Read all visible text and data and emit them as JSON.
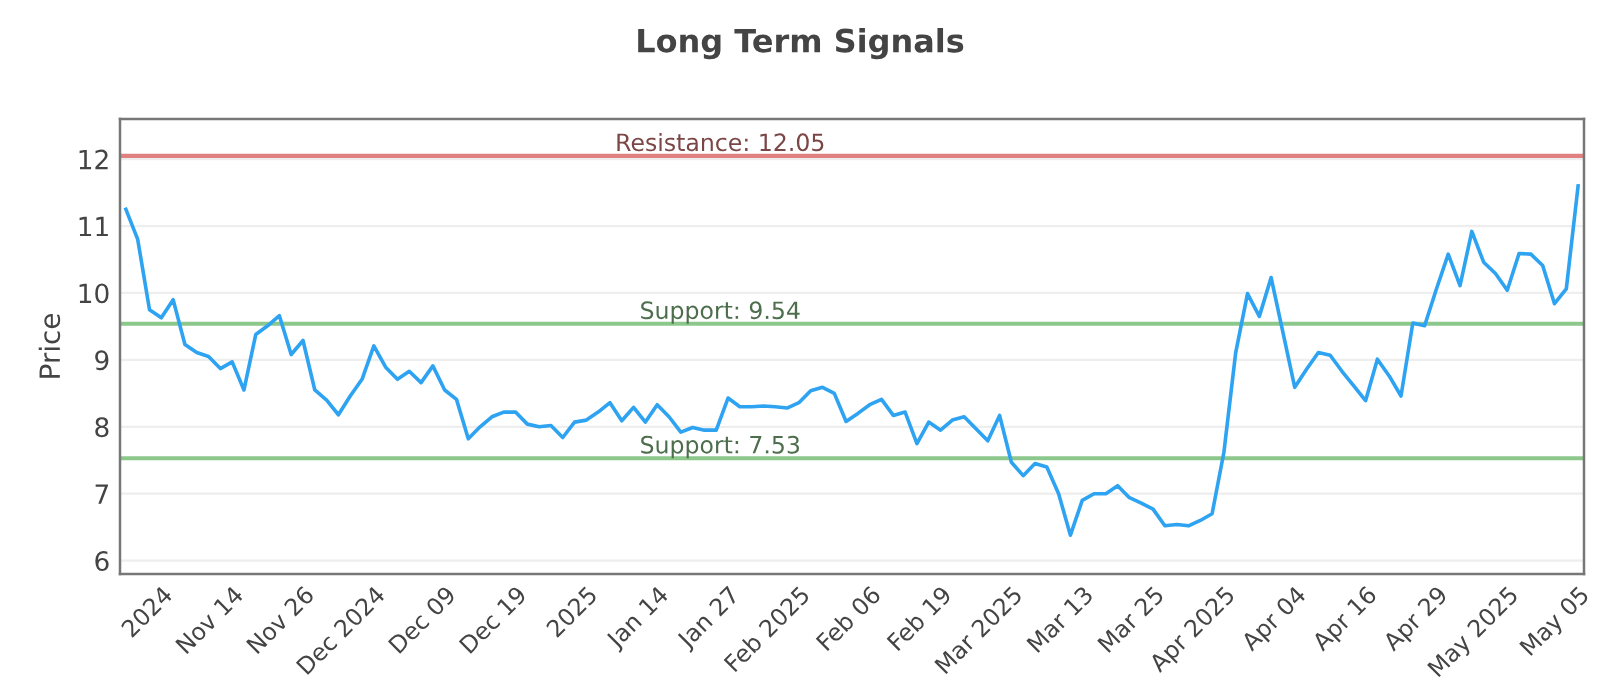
{
  "chart_data": {
    "type": "line",
    "title": "Long Term Signals",
    "ylabel": "Price",
    "categories": [
      null,
      null,
      null,
      "2024",
      null,
      null,
      null,
      null,
      null,
      "Nov 14",
      null,
      null,
      null,
      null,
      null,
      "Nov 26",
      null,
      null,
      null,
      null,
      null,
      "Dec 2024",
      null,
      null,
      null,
      null,
      null,
      "Dec 09",
      null,
      null,
      null,
      null,
      null,
      "Dec 19",
      null,
      null,
      null,
      null,
      null,
      "2025",
      null,
      null,
      null,
      null,
      null,
      "Jan 14",
      null,
      null,
      null,
      null,
      null,
      "Jan 27",
      null,
      null,
      null,
      null,
      null,
      "Feb 2025",
      null,
      null,
      null,
      null,
      null,
      "Feb 06",
      null,
      null,
      null,
      null,
      null,
      "Feb 19",
      null,
      null,
      null,
      null,
      null,
      "Mar 2025",
      null,
      null,
      null,
      null,
      null,
      "Mar 13",
      null,
      null,
      null,
      null,
      null,
      "Mar 25",
      null,
      null,
      null,
      null,
      null,
      "Apr 2025",
      null,
      null,
      null,
      null,
      null,
      "Apr 04",
      null,
      null,
      null,
      null,
      null,
      "Apr 16",
      null,
      null,
      null,
      null,
      null,
      "Apr 29",
      null,
      null,
      null,
      null,
      null,
      "May 2025",
      null,
      null,
      null,
      null,
      null,
      "May 05"
    ],
    "series": [
      {
        "color": "#2ea3f2",
        "values": [
          11.25,
          10.8,
          9.75,
          9.63,
          9.9,
          9.23,
          9.11,
          9.05,
          8.87,
          8.97,
          8.55,
          9.38,
          9.51,
          9.66,
          9.08,
          9.29,
          8.55,
          8.4,
          8.18,
          8.46,
          8.71,
          9.21,
          8.89,
          8.71,
          8.83,
          8.66,
          8.91,
          8.55,
          8.41,
          7.82,
          8.0,
          8.15,
          8.22,
          8.22,
          8.04,
          8.0,
          8.02,
          7.84,
          8.07,
          8.1,
          8.22,
          8.36,
          8.09,
          8.29,
          8.07,
          8.33,
          8.15,
          7.92,
          7.99,
          7.95,
          7.95,
          8.43,
          8.3,
          8.3,
          8.31,
          8.3,
          8.28,
          8.36,
          8.54,
          8.59,
          8.5,
          8.08,
          8.2,
          8.33,
          8.41,
          8.17,
          8.22,
          7.75,
          8.07,
          7.95,
          8.1,
          8.15,
          7.97,
          7.79,
          8.17,
          7.47,
          7.27,
          7.45,
          7.4,
          7.0,
          6.38,
          6.9,
          7.0,
          7.0,
          7.12,
          6.94,
          6.86,
          6.77,
          6.52,
          6.54,
          6.52,
          6.6,
          6.7,
          7.62,
          9.11,
          9.99,
          9.65,
          10.23,
          9.41,
          8.59,
          8.86,
          9.11,
          9.07,
          8.83,
          8.61,
          8.39,
          9.01,
          8.76,
          8.46,
          9.55,
          9.51,
          10.06,
          10.58,
          10.11,
          10.92,
          10.46,
          10.29,
          10.04,
          10.59,
          10.58,
          10.41,
          9.84,
          10.06,
          11.6
        ]
      }
    ],
    "ylim": [
      5.8,
      12.6
    ],
    "yticks": [
      6,
      7,
      8,
      9,
      10,
      11,
      12
    ],
    "grid": "y",
    "marker": "none",
    "line_style": "solid",
    "ref_lines": [
      {
        "axis": "y",
        "value": 12.05,
        "label": "Resistance: 12.05",
        "color": "#e08080"
      },
      {
        "axis": "y",
        "value": 9.54,
        "label": "Support: 9.54",
        "color": "#8cc88c"
      },
      {
        "axis": "y",
        "value": 7.53,
        "label": "Support: 7.53",
        "color": "#8cc88c"
      }
    ]
  }
}
